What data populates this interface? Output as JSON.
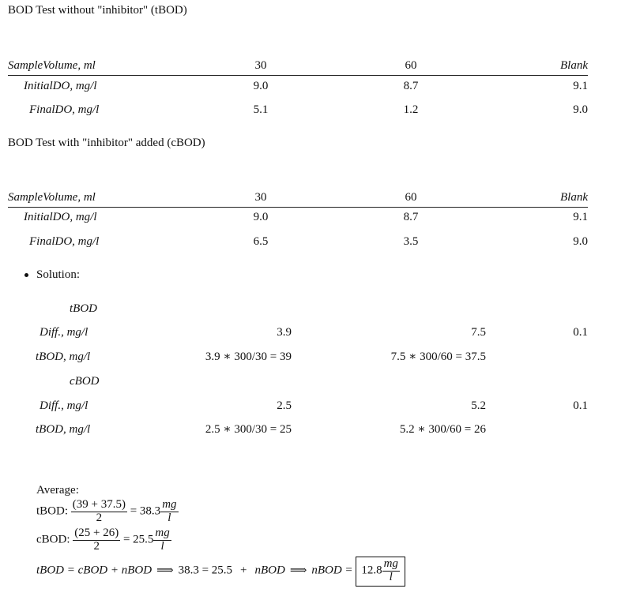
{
  "tbod_section": {
    "title": "BOD Test without \"inhibitor\" (tBOD)",
    "headers": [
      "SampleVolume, ml",
      "30",
      "60",
      "Blank"
    ],
    "rows": [
      {
        "label": "InitialDO, mg/l",
        "v30": "9.0",
        "v60": "8.7",
        "blank": "9.1"
      },
      {
        "label": "FinalDO, mg/l",
        "v30": "5.1",
        "v60": "1.2",
        "blank": "9.0"
      }
    ]
  },
  "cbod_section": {
    "title": "BOD Test with \"inhibitor\" added (cBOD)",
    "headers": [
      "SampleVolume, ml",
      "30",
      "60",
      "Blank"
    ],
    "rows": [
      {
        "label": "InitialDO, mg/l",
        "v30": "9.0",
        "v60": "8.7",
        "blank": "9.1"
      },
      {
        "label": "FinalDO, mg/l",
        "v30": "6.5",
        "v60": "3.5",
        "blank": "9.0"
      }
    ]
  },
  "solution": {
    "bullet_label": "Solution:",
    "tbod": {
      "heading": "tBOD",
      "diff_label": "Diff., mg/l",
      "diff_30": "3.9",
      "diff_60": "7.5",
      "diff_blank": "0.1",
      "bod_label": "tBOD, mg/l",
      "bod_30": "3.9 ∗ 300/30 = 39",
      "bod_60": "7.5 ∗ 300/60 = 37.5"
    },
    "cbod": {
      "heading": "cBOD",
      "diff_label": "Diff., mg/l",
      "diff_30": "2.5",
      "diff_60": "5.2",
      "diff_blank": "0.1",
      "bod_label": "tBOD, mg/l",
      "bod_30": "2.5 ∗ 300/30 = 25",
      "bod_60": "5.2 ∗ 300/60 = 26"
    }
  },
  "average": {
    "label": "Average:",
    "tbod": {
      "prefix": "tBOD:",
      "num": "(39 + 37.5)",
      "den": "2",
      "result": "= 38.3",
      "unit_num": "mg",
      "unit_den": "l"
    },
    "cbod": {
      "prefix": "cBOD:",
      "num": "(25 + 26)",
      "den": "2",
      "result": "= 25.5",
      "unit_num": "mg",
      "unit_den": "l"
    }
  },
  "final_equation": {
    "lhs": "tBOD = cBOD + nBOD",
    "arrow1": "⟹",
    "mid1": "38.3 = 25.5",
    "plus": "+",
    "mid2": "nBOD",
    "arrow2": "⟹",
    "rhs": "nBOD =",
    "boxed_value": "12.8",
    "boxed_unit_num": "mg",
    "boxed_unit_den": "l"
  }
}
